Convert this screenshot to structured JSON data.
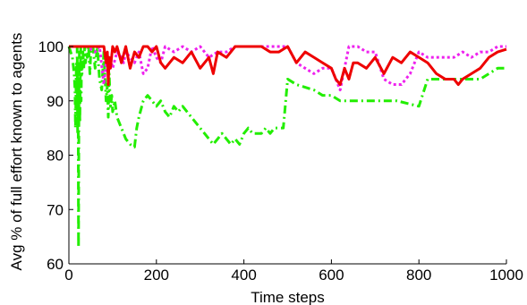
{
  "chart_data": {
    "type": "line",
    "title": "",
    "xlabel": "Time steps",
    "ylabel": "Avg % of full effort known to agents",
    "xlim": [
      0,
      1000
    ],
    "ylim": [
      60,
      100
    ],
    "xticks": [
      0,
      200,
      400,
      600,
      800,
      1000
    ],
    "yticks": [
      60,
      70,
      80,
      90,
      100
    ],
    "grid": false,
    "legend": "none",
    "series": [
      {
        "color": "#22ee00",
        "linestyle": "dashdot",
        "x": [
          0,
          8,
          12,
          14,
          15,
          16,
          17,
          18,
          19,
          20,
          21,
          22,
          23,
          24,
          25,
          26,
          27,
          28,
          29,
          30,
          32,
          34,
          36,
          38,
          40,
          42,
          45,
          48,
          50,
          55,
          60,
          65,
          70,
          75,
          80,
          85,
          88,
          90,
          92,
          95,
          98,
          100,
          105,
          110,
          115,
          120,
          125,
          130,
          140,
          150,
          155,
          160,
          170,
          180,
          190,
          200,
          210,
          220,
          230,
          240,
          250,
          260,
          270,
          280,
          290,
          300,
          310,
          320,
          330,
          340,
          350,
          360,
          370,
          380,
          390,
          400,
          410,
          420,
          430,
          440,
          450,
          460,
          470,
          480,
          490,
          500,
          520,
          540,
          560,
          580,
          600,
          620,
          650,
          700,
          750,
          800,
          820,
          830,
          840,
          860,
          880,
          900,
          920,
          940,
          960,
          980,
          1000
        ],
        "y": [
          100,
          98,
          95,
          92,
          85,
          90,
          97,
          88,
          100,
          84,
          96,
          63,
          92,
          99,
          86,
          94,
          100,
          90,
          98,
          95,
          99,
          96,
          100,
          97,
          99,
          98,
          100,
          95,
          99,
          100,
          96,
          100,
          94,
          92,
          99,
          90,
          93,
          87,
          95,
          89,
          91,
          88,
          90,
          87,
          86,
          85,
          84,
          83,
          82,
          81.5,
          85,
          87,
          90,
          91,
          90,
          89,
          90,
          88,
          87,
          89,
          88,
          89,
          88,
          87,
          86,
          85,
          84,
          83,
          82,
          83,
          84,
          83,
          82,
          83,
          82,
          84,
          85,
          84,
          84,
          84,
          85,
          84,
          85,
          85,
          85,
          94,
          93,
          92.5,
          92,
          91,
          91,
          90,
          90,
          90,
          90,
          89,
          94,
          94,
          94,
          94,
          94,
          94,
          94,
          94,
          95,
          96,
          96
        ]
      },
      {
        "color": "#ee22ee",
        "linestyle": "dotted",
        "x": [
          0,
          20,
          40,
          60,
          70,
          80,
          85,
          90,
          95,
          100,
          110,
          120,
          125,
          130,
          140,
          150,
          160,
          170,
          180,
          190,
          200,
          210,
          220,
          240,
          260,
          280,
          300,
          320,
          340,
          360,
          380,
          400,
          420,
          440,
          460,
          480,
          500,
          520,
          540,
          560,
          580,
          600,
          620,
          640,
          660,
          680,
          700,
          720,
          740,
          760,
          780,
          800,
          820,
          840,
          860,
          880,
          900,
          920,
          940,
          960,
          980,
          1000
        ],
        "y": [
          100,
          100,
          100,
          99,
          100,
          93,
          97,
          95,
          98,
          96,
          99,
          98,
          97,
          99,
          98,
          97,
          99,
          95,
          96,
          100,
          98,
          97,
          100,
          99,
          100,
          99,
          100,
          98,
          99,
          99,
          100,
          100,
          100,
          100,
          100,
          100,
          100,
          97,
          96,
          95,
          96,
          96,
          92,
          100,
          100,
          99,
          99,
          94,
          93,
          93,
          95,
          99,
          98,
          98,
          98,
          98,
          99,
          98,
          99,
          99,
          100,
          100
        ]
      },
      {
        "color": "#ee0000",
        "linestyle": "solid",
        "x": [
          0,
          60,
          80,
          85,
          88,
          90,
          92,
          95,
          100,
          105,
          110,
          120,
          130,
          140,
          150,
          160,
          170,
          180,
          190,
          200,
          210,
          220,
          240,
          260,
          280,
          300,
          320,
          330,
          340,
          360,
          380,
          400,
          420,
          440,
          460,
          480,
          500,
          520,
          540,
          560,
          580,
          600,
          610,
          620,
          630,
          640,
          650,
          660,
          680,
          700,
          720,
          740,
          760,
          780,
          800,
          820,
          840,
          860,
          880,
          890,
          900,
          920,
          940,
          960,
          980,
          1000
        ],
        "y": [
          100,
          100,
          100,
          97,
          99,
          93,
          98,
          96,
          100,
          99,
          100,
          97,
          100,
          96,
          99,
          98,
          100,
          100,
          99,
          100,
          97,
          96,
          98,
          97,
          99,
          96,
          98,
          95,
          99,
          98,
          100,
          100,
          100,
          100,
          99,
          99,
          100,
          97,
          99,
          98,
          97,
          96,
          94,
          93,
          96,
          94,
          97,
          97,
          96,
          98,
          95,
          98,
          97,
          99,
          98,
          97,
          95,
          94,
          94,
          93,
          94,
          95,
          96,
          98,
          99,
          99.5
        ]
      }
    ]
  }
}
